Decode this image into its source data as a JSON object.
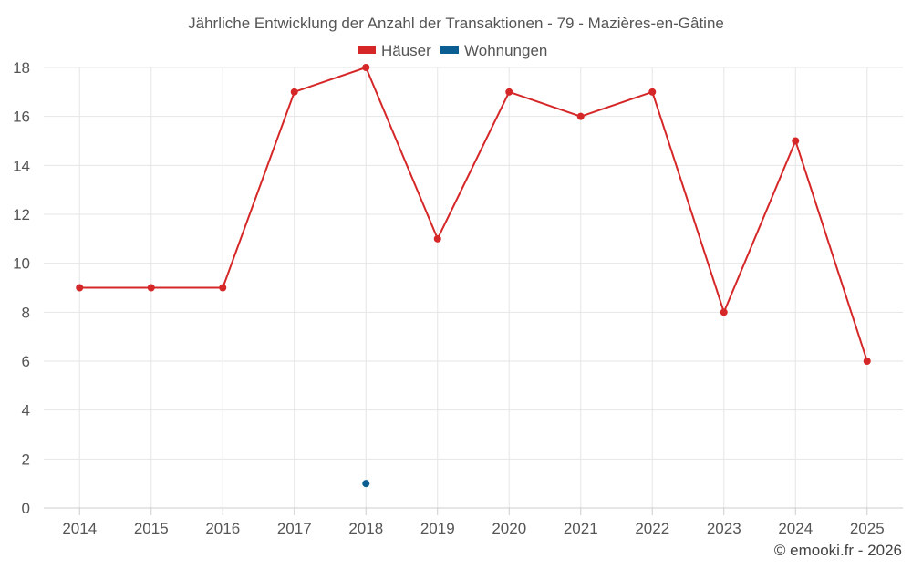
{
  "chart_data": {
    "type": "line",
    "title": "Jährliche Entwicklung der Anzahl der Transaktionen - 79 - Mazières-en-Gâtine",
    "categories": [
      "2014",
      "2015",
      "2016",
      "2017",
      "2018",
      "2019",
      "2020",
      "2021",
      "2022",
      "2023",
      "2024",
      "2025"
    ],
    "series": [
      {
        "name": "Häuser",
        "color": "#d62728",
        "values": [
          9,
          9,
          9,
          17,
          18,
          11,
          17,
          16,
          17,
          8,
          15,
          6
        ]
      },
      {
        "name": "Wohnungen",
        "color": "#0b5e91",
        "values": [
          null,
          null,
          null,
          null,
          1,
          null,
          null,
          null,
          null,
          null,
          null,
          null
        ]
      }
    ],
    "ylim": [
      0,
      18
    ],
    "yticks": [
      0,
      2,
      4,
      6,
      8,
      10,
      12,
      14,
      16,
      18
    ],
    "xlabel": "",
    "ylabel": "",
    "grid": true,
    "legend_position": "top-center"
  },
  "credit": "© emooki.fr - 2026"
}
